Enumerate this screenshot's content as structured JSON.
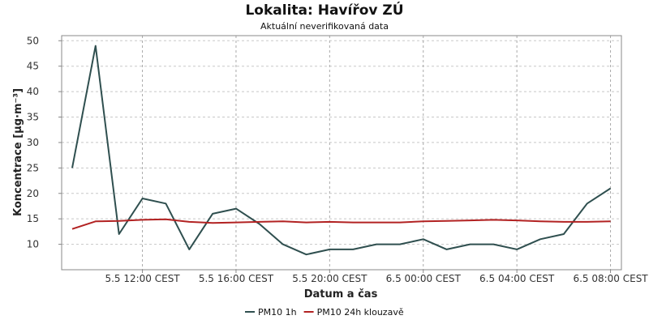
{
  "chart_data": {
    "type": "line",
    "title": "Lokalita: Havířov ZÚ",
    "subtitle": "Aktuální neverifikovaná data",
    "xlabel": "Datum a čas",
    "ylabel": "Koncentrace [µg·m⁻³]",
    "ylim": [
      5,
      51
    ],
    "yticks": [
      10,
      15,
      20,
      25,
      30,
      35,
      40,
      45,
      50
    ],
    "x_tick_labels": [
      {
        "index": 3,
        "label": "5.5 12:00 CEST"
      },
      {
        "index": 7,
        "label": "5.5 16:00 CEST"
      },
      {
        "index": 11,
        "label": "5.5 20:00 CEST"
      },
      {
        "index": 15,
        "label": "6.5 00:00 CEST"
      },
      {
        "index": 19,
        "label": "6.5 04:00 CEST"
      },
      {
        "index": 23,
        "label": "6.5 08:00 CEST"
      }
    ],
    "x_count": 24,
    "grid": true,
    "legend_position": "bottom",
    "series": [
      {
        "name": "PM10 1h",
        "color": "#2f4f4f",
        "values": [
          25,
          49,
          12,
          19,
          18,
          9,
          16,
          17,
          14,
          10,
          8,
          9,
          9,
          10,
          10,
          11,
          9,
          10,
          10,
          9,
          11,
          12,
          18,
          21
        ]
      },
      {
        "name": "PM10 24h klouzavě",
        "color": "#b22222",
        "values": [
          13,
          14.5,
          14.6,
          14.8,
          14.9,
          14.4,
          14.2,
          14.3,
          14.4,
          14.5,
          14.3,
          14.4,
          14.3,
          14.3,
          14.3,
          14.5,
          14.6,
          14.7,
          14.8,
          14.7,
          14.5,
          14.4,
          14.4,
          14.5
        ]
      }
    ]
  }
}
